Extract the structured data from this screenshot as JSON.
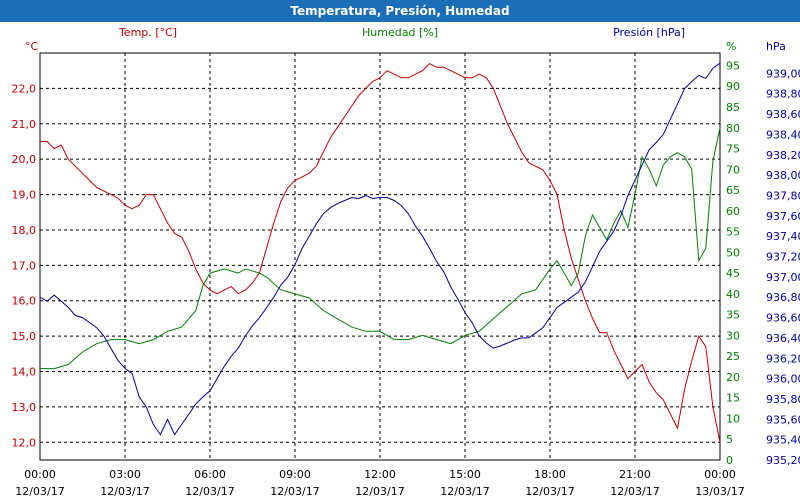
{
  "title": "Temperatura, Presión, Humedad",
  "colors": {
    "title_bar": "#1c6fb6",
    "temperature": "#c00000",
    "humidity": "#008000",
    "pressure": "#000099",
    "grid": "#000000"
  },
  "chart_data": {
    "type": "line",
    "title": "Temperatura, Presión, Humedad",
    "grid": true,
    "x_ticks": [
      {
        "time": "00:00",
        "date": "12/03/17",
        "hour": 0
      },
      {
        "time": "03:00",
        "date": "12/03/17",
        "hour": 3
      },
      {
        "time": "06:00",
        "date": "12/03/17",
        "hour": 6
      },
      {
        "time": "09:00",
        "date": "12/03/17",
        "hour": 9
      },
      {
        "time": "12:00",
        "date": "12/03/17",
        "hour": 12
      },
      {
        "time": "15:00",
        "date": "12/03/17",
        "hour": 15
      },
      {
        "time": "18:00",
        "date": "12/03/17",
        "hour": 18
      },
      {
        "time": "21:00",
        "date": "12/03/17",
        "hour": 21
      },
      {
        "time": "00:00",
        "date": "13/03/17",
        "hour": 24
      }
    ],
    "xlim": [
      0,
      24
    ],
    "axes": {
      "temperature": {
        "label": "Temp. [°C]",
        "unit": "°C",
        "ylim": [
          11.5,
          23.0
        ],
        "ticks": [
          "12,0",
          "13,0",
          "14,0",
          "15,0",
          "16,0",
          "17,0",
          "18,0",
          "19,0",
          "20,0",
          "21,0",
          "22,0"
        ]
      },
      "humidity": {
        "label": "Humedad [%]",
        "unit": "%",
        "ylim": [
          0,
          98
        ],
        "ticks": [
          "0",
          "5",
          "10",
          "15",
          "20",
          "25",
          "30",
          "35",
          "40",
          "45",
          "50",
          "55",
          "60",
          "65",
          "70",
          "75",
          "80",
          "85",
          "90",
          "95"
        ]
      },
      "pressure": {
        "label": "Presión [hPa]",
        "unit": "hPa",
        "ylim": [
          935.2,
          939.2
        ],
        "ticks": [
          "935,20",
          "935,40",
          "935,60",
          "935,80",
          "936,00",
          "936,20",
          "936,40",
          "936,60",
          "936,80",
          "937,00",
          "937,20",
          "937,40",
          "937,60",
          "937,80",
          "938,00",
          "938,20",
          "938,40",
          "938,60",
          "938,80",
          "939,00"
        ]
      }
    },
    "series": [
      {
        "name": "Temp. [°C]",
        "axis": "temperature",
        "points": [
          [
            0,
            20.5
          ],
          [
            0.25,
            20.5
          ],
          [
            0.5,
            20.3
          ],
          [
            0.75,
            20.4
          ],
          [
            1,
            20.0
          ],
          [
            1.25,
            19.8
          ],
          [
            1.5,
            19.6
          ],
          [
            1.75,
            19.4
          ],
          [
            2,
            19.2
          ],
          [
            2.25,
            19.1
          ],
          [
            2.5,
            19.0
          ],
          [
            2.75,
            18.9
          ],
          [
            3,
            18.7
          ],
          [
            3.25,
            18.6
          ],
          [
            3.5,
            18.7
          ],
          [
            3.75,
            19.0
          ],
          [
            4,
            19.0
          ],
          [
            4.25,
            18.6
          ],
          [
            4.5,
            18.2
          ],
          [
            4.75,
            17.9
          ],
          [
            5,
            17.8
          ],
          [
            5.25,
            17.4
          ],
          [
            5.5,
            16.9
          ],
          [
            5.75,
            16.5
          ],
          [
            6,
            16.3
          ],
          [
            6.25,
            16.2
          ],
          [
            6.5,
            16.3
          ],
          [
            6.75,
            16.4
          ],
          [
            7,
            16.2
          ],
          [
            7.25,
            16.3
          ],
          [
            7.5,
            16.5
          ],
          [
            7.75,
            16.8
          ],
          [
            8,
            17.5
          ],
          [
            8.25,
            18.2
          ],
          [
            8.5,
            18.8
          ],
          [
            8.75,
            19.2
          ],
          [
            9,
            19.4
          ],
          [
            9.25,
            19.5
          ],
          [
            9.5,
            19.6
          ],
          [
            9.75,
            19.8
          ],
          [
            10,
            20.2
          ],
          [
            10.25,
            20.6
          ],
          [
            10.5,
            20.9
          ],
          [
            10.75,
            21.2
          ],
          [
            11,
            21.5
          ],
          [
            11.25,
            21.8
          ],
          [
            11.5,
            22.0
          ],
          [
            11.75,
            22.2
          ],
          [
            12,
            22.3
          ],
          [
            12.25,
            22.5
          ],
          [
            12.5,
            22.4
          ],
          [
            12.75,
            22.3
          ],
          [
            13,
            22.3
          ],
          [
            13.25,
            22.4
          ],
          [
            13.5,
            22.5
          ],
          [
            13.75,
            22.7
          ],
          [
            14,
            22.6
          ],
          [
            14.25,
            22.6
          ],
          [
            14.5,
            22.5
          ],
          [
            14.75,
            22.4
          ],
          [
            15,
            22.3
          ],
          [
            15.25,
            22.3
          ],
          [
            15.5,
            22.4
          ],
          [
            15.75,
            22.3
          ],
          [
            16,
            22.0
          ],
          [
            16.25,
            21.5
          ],
          [
            16.5,
            21.0
          ],
          [
            16.75,
            20.6
          ],
          [
            17,
            20.2
          ],
          [
            17.25,
            19.9
          ],
          [
            17.5,
            19.8
          ],
          [
            17.75,
            19.7
          ],
          [
            18,
            19.4
          ],
          [
            18.25,
            19.0
          ],
          [
            18.5,
            18.0
          ],
          [
            18.75,
            17.2
          ],
          [
            19,
            16.6
          ],
          [
            19.25,
            16.0
          ],
          [
            19.5,
            15.5
          ],
          [
            19.75,
            15.1
          ],
          [
            20,
            15.1
          ],
          [
            20.25,
            14.6
          ],
          [
            20.5,
            14.2
          ],
          [
            20.75,
            13.8
          ],
          [
            21,
            14.0
          ],
          [
            21.25,
            14.2
          ],
          [
            21.5,
            13.7
          ],
          [
            21.75,
            13.4
          ],
          [
            22,
            13.2
          ],
          [
            22.25,
            12.8
          ],
          [
            22.5,
            12.4
          ],
          [
            22.75,
            13.5
          ],
          [
            23,
            14.3
          ],
          [
            23.25,
            15.0
          ],
          [
            23.5,
            14.7
          ],
          [
            23.75,
            13.0
          ],
          [
            24,
            12.0
          ]
        ]
      },
      {
        "name": "Humedad [%]",
        "axis": "humidity",
        "points": [
          [
            0,
            22
          ],
          [
            0.5,
            22
          ],
          [
            1,
            23
          ],
          [
            1.5,
            26
          ],
          [
            2,
            28
          ],
          [
            2.5,
            29
          ],
          [
            3,
            29
          ],
          [
            3.5,
            28
          ],
          [
            4,
            29
          ],
          [
            4.5,
            31
          ],
          [
            5,
            32
          ],
          [
            5.5,
            36
          ],
          [
            5.75,
            42
          ],
          [
            6,
            45
          ],
          [
            6.5,
            46
          ],
          [
            7,
            45
          ],
          [
            7.25,
            46
          ],
          [
            7.75,
            45
          ],
          [
            8,
            44
          ],
          [
            8.5,
            41
          ],
          [
            9,
            40
          ],
          [
            9.5,
            39
          ],
          [
            10,
            36
          ],
          [
            10.5,
            34
          ],
          [
            11,
            32
          ],
          [
            11.5,
            31
          ],
          [
            12,
            31
          ],
          [
            12.5,
            29
          ],
          [
            13,
            29
          ],
          [
            13.5,
            30
          ],
          [
            14,
            29
          ],
          [
            14.5,
            28
          ],
          [
            15,
            30
          ],
          [
            15.5,
            31
          ],
          [
            16,
            34
          ],
          [
            16.5,
            37
          ],
          [
            17,
            40
          ],
          [
            17.5,
            41
          ],
          [
            18,
            46
          ],
          [
            18.25,
            48
          ],
          [
            18.5,
            45
          ],
          [
            18.75,
            42
          ],
          [
            19,
            45
          ],
          [
            19.25,
            54
          ],
          [
            19.5,
            59
          ],
          [
            19.75,
            56
          ],
          [
            20,
            53
          ],
          [
            20.25,
            57
          ],
          [
            20.5,
            60
          ],
          [
            20.75,
            56
          ],
          [
            21,
            64
          ],
          [
            21.25,
            73
          ],
          [
            21.5,
            70
          ],
          [
            21.75,
            66
          ],
          [
            22,
            71
          ],
          [
            22.25,
            73
          ],
          [
            22.5,
            74
          ],
          [
            22.75,
            73
          ],
          [
            23,
            70
          ],
          [
            23.25,
            48
          ],
          [
            23.5,
            51
          ],
          [
            23.75,
            72
          ],
          [
            24,
            80
          ]
        ]
      },
      {
        "name": "Presión [hPa]",
        "axis": "pressure",
        "points": [
          [
            0,
            936.8
          ],
          [
            0.25,
            936.76
          ],
          [
            0.5,
            936.82
          ],
          [
            0.75,
            936.76
          ],
          [
            1,
            936.7
          ],
          [
            1.25,
            936.62
          ],
          [
            1.5,
            936.6
          ],
          [
            1.75,
            936.55
          ],
          [
            2,
            936.5
          ],
          [
            2.25,
            936.42
          ],
          [
            2.5,
            936.3
          ],
          [
            2.75,
            936.18
          ],
          [
            3,
            936.1
          ],
          [
            3.25,
            936.05
          ],
          [
            3.5,
            935.82
          ],
          [
            3.75,
            935.72
          ],
          [
            4,
            935.55
          ],
          [
            4.25,
            935.45
          ],
          [
            4.5,
            935.6
          ],
          [
            4.75,
            935.45
          ],
          [
            5,
            935.55
          ],
          [
            5.25,
            935.65
          ],
          [
            5.5,
            935.75
          ],
          [
            5.75,
            935.82
          ],
          [
            6,
            935.88
          ],
          [
            6.25,
            936.0
          ],
          [
            6.5,
            936.12
          ],
          [
            6.75,
            936.22
          ],
          [
            7,
            936.3
          ],
          [
            7.25,
            936.42
          ],
          [
            7.5,
            936.52
          ],
          [
            7.75,
            936.6
          ],
          [
            8,
            936.7
          ],
          [
            8.25,
            936.8
          ],
          [
            8.5,
            936.92
          ],
          [
            8.75,
            937.0
          ],
          [
            9,
            937.12
          ],
          [
            9.25,
            937.28
          ],
          [
            9.5,
            937.4
          ],
          [
            9.75,
            937.52
          ],
          [
            10,
            937.62
          ],
          [
            10.25,
            937.68
          ],
          [
            10.5,
            937.72
          ],
          [
            10.75,
            937.75
          ],
          [
            11,
            937.78
          ],
          [
            11.25,
            937.77
          ],
          [
            11.5,
            937.8
          ],
          [
            11.75,
            937.77
          ],
          [
            12,
            937.78
          ],
          [
            12.25,
            937.78
          ],
          [
            12.5,
            937.75
          ],
          [
            12.75,
            937.7
          ],
          [
            13,
            937.62
          ],
          [
            13.25,
            937.5
          ],
          [
            13.5,
            937.4
          ],
          [
            13.75,
            937.28
          ],
          [
            14,
            937.15
          ],
          [
            14.25,
            937.05
          ],
          [
            14.5,
            936.9
          ],
          [
            14.75,
            936.78
          ],
          [
            15,
            936.65
          ],
          [
            15.25,
            936.55
          ],
          [
            15.5,
            936.42
          ],
          [
            15.75,
            936.35
          ],
          [
            16,
            936.3
          ],
          [
            16.25,
            936.32
          ],
          [
            16.5,
            936.35
          ],
          [
            16.75,
            936.38
          ],
          [
            17,
            936.4
          ],
          [
            17.25,
            936.4
          ],
          [
            17.5,
            936.45
          ],
          [
            17.75,
            936.5
          ],
          [
            18,
            936.6
          ],
          [
            18.25,
            936.7
          ],
          [
            18.5,
            936.75
          ],
          [
            18.75,
            936.8
          ],
          [
            19,
            936.85
          ],
          [
            19.25,
            936.95
          ],
          [
            19.5,
            937.1
          ],
          [
            19.75,
            937.25
          ],
          [
            20,
            937.35
          ],
          [
            20.25,
            937.45
          ],
          [
            20.5,
            937.6
          ],
          [
            20.75,
            937.8
          ],
          [
            21,
            937.95
          ],
          [
            21.25,
            938.1
          ],
          [
            21.5,
            938.25
          ],
          [
            21.75,
            938.32
          ],
          [
            22,
            938.4
          ],
          [
            22.25,
            938.55
          ],
          [
            22.5,
            938.7
          ],
          [
            22.75,
            938.85
          ],
          [
            23,
            938.92
          ],
          [
            23.25,
            938.98
          ],
          [
            23.5,
            938.95
          ],
          [
            23.75,
            939.05
          ],
          [
            24,
            939.1
          ]
        ]
      }
    ]
  }
}
